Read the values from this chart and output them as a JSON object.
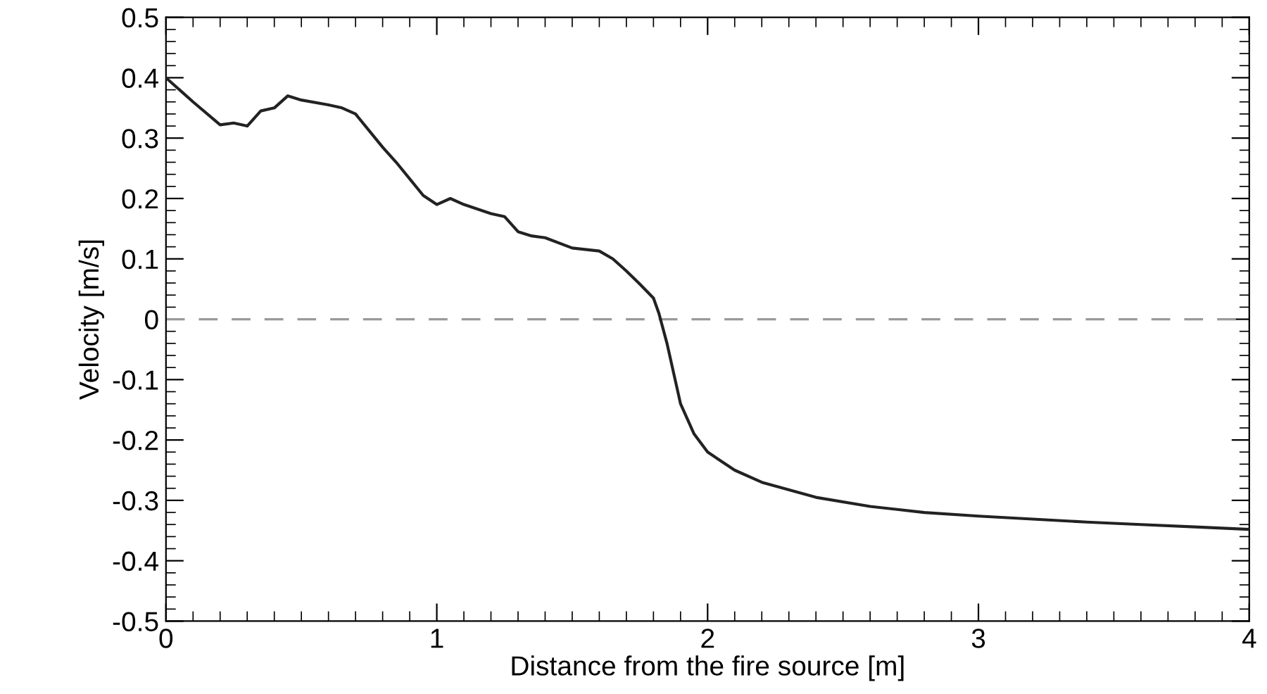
{
  "chart_data": {
    "type": "line",
    "xlabel": "Distance from the fire source [m]",
    "ylabel": "Velocity [m/s]",
    "x": [
      0,
      0.1,
      0.2,
      0.25,
      0.3,
      0.35,
      0.4,
      0.45,
      0.5,
      0.6,
      0.65,
      0.7,
      0.8,
      0.85,
      0.95,
      1.0,
      1.05,
      1.1,
      1.2,
      1.25,
      1.3,
      1.35,
      1.4,
      1.5,
      1.6,
      1.65,
      1.7,
      1.75,
      1.8,
      1.82,
      1.85,
      1.88,
      1.9,
      1.95,
      2.0,
      2.1,
      2.2,
      2.4,
      2.6,
      2.8,
      3.0,
      3.2,
      3.4,
      3.6,
      3.8,
      4.0
    ],
    "series": [
      {
        "color": "#222222",
        "values": [
          0.4,
          0.36,
          0.322,
          0.325,
          0.32,
          0.345,
          0.35,
          0.37,
          0.363,
          0.355,
          0.35,
          0.34,
          0.285,
          0.26,
          0.205,
          0.19,
          0.2,
          0.19,
          0.175,
          0.17,
          0.145,
          0.138,
          0.135,
          0.118,
          0.113,
          0.1,
          0.08,
          0.058,
          0.035,
          0.01,
          -0.04,
          -0.1,
          -0.14,
          -0.19,
          -0.22,
          -0.25,
          -0.27,
          -0.295,
          -0.31,
          -0.32,
          -0.326,
          -0.331,
          -0.336,
          -0.34,
          -0.344,
          -0.348
        ]
      }
    ],
    "xlim": [
      0,
      4
    ],
    "xticks": [
      0,
      1,
      2,
      3,
      4
    ],
    "ylim": [
      -0.5,
      0.5
    ],
    "yticks": [
      -0.5,
      -0.4,
      -0.3,
      -0.2,
      -0.1,
      0,
      0.1,
      0.2,
      0.3,
      0.4,
      0.5
    ],
    "ref_lines": [
      {
        "axis": "y",
        "value": 0,
        "color": "#999999",
        "line_style": "dashed"
      }
    ],
    "grid": false,
    "legend": false,
    "marker": "none",
    "line_style": "solid"
  }
}
